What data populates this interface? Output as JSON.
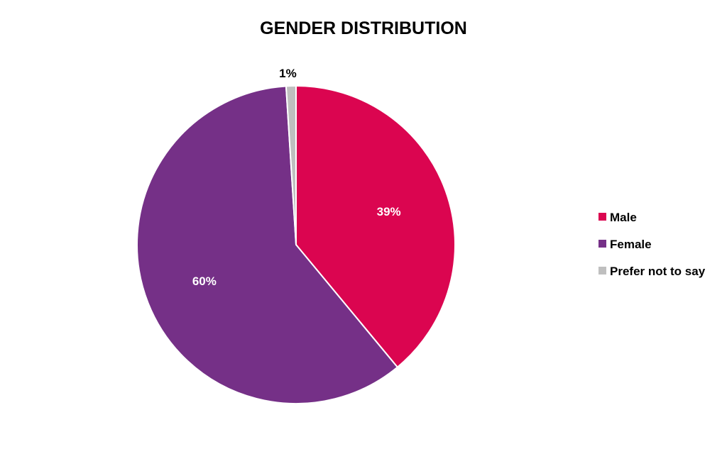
{
  "chart_data": {
    "type": "pie",
    "title": "GENDER DISTRIBUTION",
    "categories": [
      "Male",
      "Female",
      "Prefer not to say"
    ],
    "values": [
      39,
      60,
      1
    ],
    "labels": [
      "39%",
      "60%",
      "1%"
    ],
    "colors": [
      "#db0550",
      "#753087",
      "#bfbfbf"
    ],
    "label_colors": [
      "#ffffff",
      "#ffffff",
      "#000000"
    ],
    "start_angle_deg": 0,
    "direction": "clockwise",
    "legend": {
      "position": "right",
      "entries": [
        "Male",
        "Female",
        "Prefer not to say"
      ]
    }
  }
}
